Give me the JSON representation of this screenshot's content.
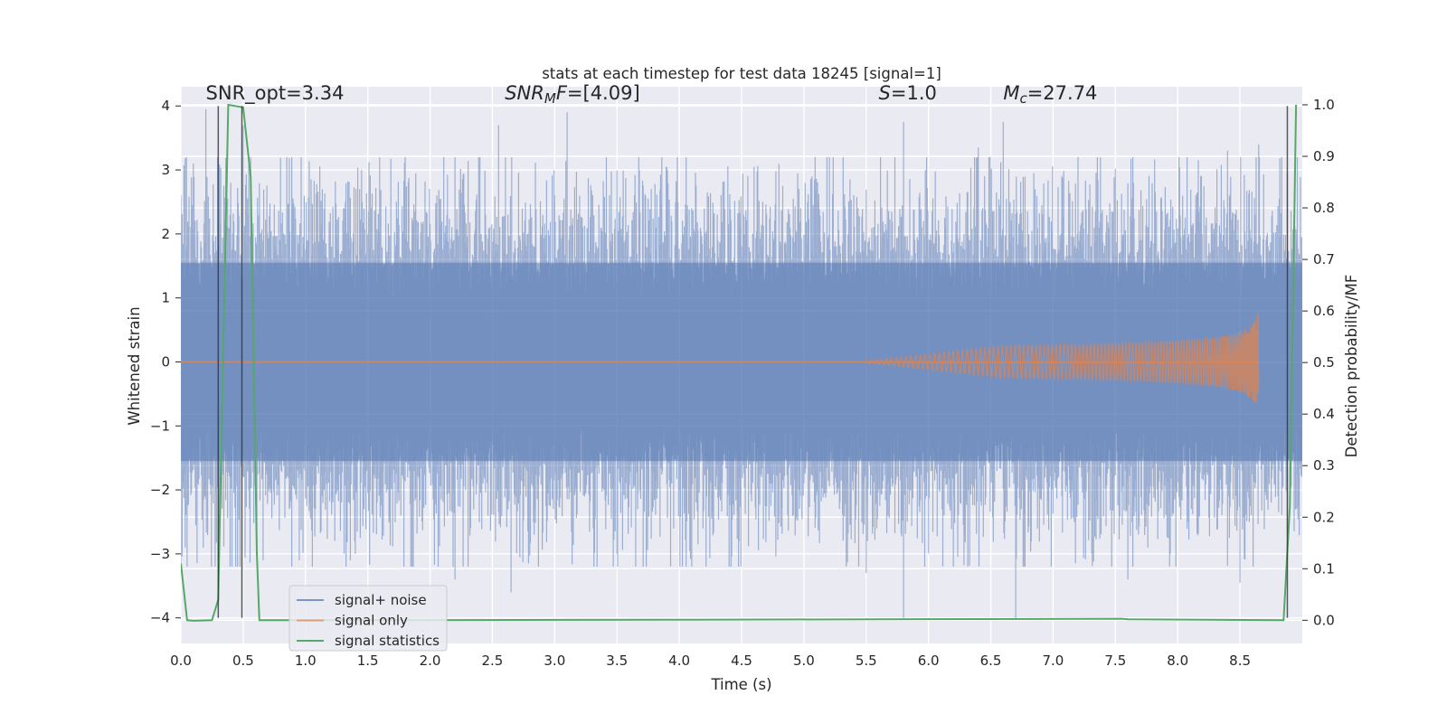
{
  "chart_data": {
    "type": "line",
    "title": "stats at each timestep for test data 18245 [signal=1]",
    "xlabel": "Time (s)",
    "ylabel": "Whitened strain",
    "y2label": "Detection probability/MF",
    "xlim": [
      0.0,
      9.0
    ],
    "ylim": [
      -4.4,
      4.3
    ],
    "y2lim": [
      -0.045,
      1.035
    ],
    "x_ticks": [
      0.0,
      0.5,
      1.0,
      1.5,
      2.0,
      2.5,
      3.0,
      3.5,
      4.0,
      4.5,
      5.0,
      5.5,
      6.0,
      6.5,
      7.0,
      7.5,
      8.0,
      8.5
    ],
    "x_tick_labels": [
      "0.0",
      "0.5",
      "1.0",
      "1.5",
      "2.0",
      "2.5",
      "3.0",
      "3.5",
      "4.0",
      "4.5",
      "5.0",
      "5.5",
      "6.0",
      "6.5",
      "7.0",
      "7.5",
      "8.0",
      "8.5"
    ],
    "y_ticks": [
      -4,
      -3,
      -2,
      -1,
      0,
      1,
      2,
      3,
      4
    ],
    "y_tick_labels": [
      "−4",
      "−3",
      "−2",
      "−1",
      "0",
      "1",
      "2",
      "3",
      "4"
    ],
    "y2_ticks": [
      0.0,
      0.1,
      0.2,
      0.3,
      0.4,
      0.5,
      0.6,
      0.7,
      0.8,
      0.9,
      1.0
    ],
    "y2_tick_labels": [
      "0.0",
      "0.1",
      "0.2",
      "0.3",
      "0.4",
      "0.5",
      "0.6",
      "0.7",
      "0.8",
      "0.9",
      "1.0"
    ],
    "grid": true,
    "legend_position": "bottom-left",
    "annotations": [
      {
        "parts": [
          {
            "t": "SNR_opt=3.34",
            "style": "normal"
          }
        ],
        "x": 0.2,
        "y": 4.1
      },
      {
        "parts": [
          {
            "t": "SNR",
            "style": "italic"
          },
          {
            "t": "M",
            "style": "italic-sub"
          },
          {
            "t": "F",
            "style": "italic"
          },
          {
            "t": "=[4.09]",
            "style": "normal"
          }
        ],
        "x": 2.6,
        "y": 4.1
      },
      {
        "parts": [
          {
            "t": "S",
            "style": "italic"
          },
          {
            "t": "=1.0",
            "style": "normal"
          }
        ],
        "x": 5.6,
        "y": 4.1
      },
      {
        "parts": [
          {
            "t": "M",
            "style": "italic"
          },
          {
            "t": "c",
            "style": "italic-sub"
          },
          {
            "t": "=27.74",
            "style": "normal"
          }
        ],
        "x": 6.6,
        "y": 4.1
      }
    ],
    "vertical_lines": [
      0.3,
      0.49,
      8.88
    ],
    "series": [
      {
        "name": "signal+ noise",
        "color": "#4c72b0",
        "axis": "left",
        "kind": "noise",
        "x_range": [
          0.0,
          9.0
        ],
        "envelope": 1.55,
        "peaks": [
          {
            "x": 0.0,
            "y": 2.6
          },
          {
            "x": 0.2,
            "y": 3.95
          },
          {
            "x": 0.5,
            "y": 3.7
          },
          {
            "x": 0.05,
            "y": -3.2
          },
          {
            "x": 0.3,
            "y": -3.1
          },
          {
            "x": 0.95,
            "y": -3.1
          },
          {
            "x": 1.4,
            "y": -3.0
          },
          {
            "x": 2.2,
            "y": -3.4
          },
          {
            "x": 2.55,
            "y": 3.7
          },
          {
            "x": 2.65,
            "y": -3.6
          },
          {
            "x": 3.1,
            "y": 3.9
          },
          {
            "x": 3.5,
            "y": -3.0
          },
          {
            "x": 5.5,
            "y": -3.3
          },
          {
            "x": 5.8,
            "y": 3.75
          },
          {
            "x": 5.8,
            "y": -4.0
          },
          {
            "x": 6.4,
            "y": 3.35
          },
          {
            "x": 6.6,
            "y": 3.75
          },
          {
            "x": 6.7,
            "y": -4.0
          },
          {
            "x": 7.2,
            "y": 3.2
          },
          {
            "x": 7.6,
            "y": -3.4
          },
          {
            "x": 8.4,
            "y": 3.3
          },
          {
            "x": 8.5,
            "y": -3.45
          },
          {
            "x": 8.65,
            "y": 3.4
          }
        ]
      },
      {
        "name": "signal only",
        "color": "#dd8452",
        "axis": "left",
        "kind": "chirp",
        "x_range": [
          5.5,
          8.65
        ],
        "peak_amplitude": 0.82
      },
      {
        "name": "signal statistics",
        "color": "#55a868",
        "axis": "right",
        "kind": "line",
        "x": [
          0.0,
          0.05,
          0.1,
          0.25,
          0.3,
          0.38,
          0.5,
          0.56,
          0.61,
          0.63,
          1.0,
          3.9,
          7.55,
          7.6,
          8.85,
          8.9,
          8.95
        ],
        "y": [
          0.11,
          0.0,
          -0.001,
          0.0,
          0.04,
          1.0,
          0.995,
          0.86,
          0.13,
          0.0,
          0.0,
          0.001,
          0.003,
          0.002,
          0.0,
          0.22,
          1.0
        ]
      }
    ]
  }
}
